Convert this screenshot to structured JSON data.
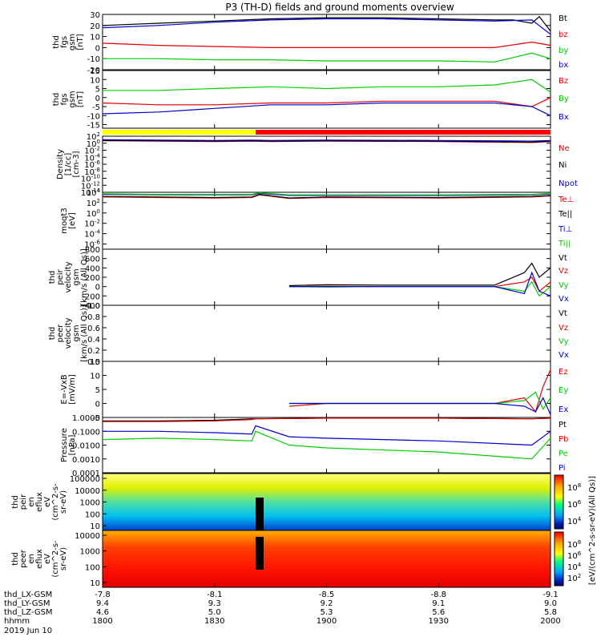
{
  "title": "P3 (TH-D) fields and ground moments overview",
  "colors": {
    "black": "#000000",
    "red": "#e00000",
    "green": "#00cc00",
    "blue": "#0000cc",
    "yellow": "#ffff00",
    "barred": "#ff0000"
  },
  "chart_data": [
    {
      "type": "line",
      "ylabel": [
        "thd",
        "fgs",
        "gsm",
        "[nT]"
      ],
      "ylim": [
        -20,
        30
      ],
      "yticks": [
        "30",
        "20",
        "10",
        "0",
        "-10",
        "-20"
      ],
      "scale": "linear",
      "series": [
        {
          "name": "Bt",
          "color": "#000000",
          "x": [
            1800,
            1815,
            1830,
            1845,
            1900,
            1915,
            1930,
            1945,
            1950,
            1955,
            1957,
            1960
          ],
          "y": [
            20,
            22,
            24,
            26,
            27,
            27,
            26,
            25,
            25,
            22,
            28,
            15
          ]
        },
        {
          "name": "bz",
          "color": "#e00000",
          "x": [
            1800,
            1815,
            1830,
            1845,
            1900,
            1915,
            1930,
            1945,
            1955,
            1960
          ],
          "y": [
            4,
            2,
            1,
            0,
            0,
            0,
            0,
            0,
            5,
            2
          ]
        },
        {
          "name": "by",
          "color": "#00cc00",
          "x": [
            1800,
            1815,
            1830,
            1845,
            1900,
            1915,
            1930,
            1945,
            1955,
            1960
          ],
          "y": [
            -10,
            -10,
            -11,
            -11,
            -12,
            -12,
            -12,
            -13,
            -5,
            -10
          ]
        },
        {
          "name": "bx",
          "color": "#0000cc",
          "x": [
            1800,
            1815,
            1830,
            1845,
            1900,
            1915,
            1930,
            1945,
            1955,
            1960
          ],
          "y": [
            18,
            20,
            23,
            25,
            26,
            26,
            25,
            24,
            25,
            12
          ]
        }
      ]
    },
    {
      "type": "line",
      "ylabel": [
        "thd",
        "fgs",
        "gsm",
        "[nT]"
      ],
      "ylim": [
        -17,
        15
      ],
      "yticks": [
        "15",
        "10",
        "5",
        "0",
        "-5",
        "-10",
        "-15"
      ],
      "scale": "linear",
      "series": [
        {
          "name": "Bz",
          "color": "#e00000",
          "x": [
            1800,
            1815,
            1830,
            1845,
            1900,
            1915,
            1930,
            1945,
            1955,
            1960
          ],
          "y": [
            -3,
            -4,
            -4,
            -3,
            -3,
            -2,
            -2,
            -2,
            -5,
            0
          ]
        },
        {
          "name": "By",
          "color": "#00cc00",
          "x": [
            1800,
            1815,
            1830,
            1845,
            1900,
            1915,
            1930,
            1945,
            1955,
            1960
          ],
          "y": [
            4,
            4,
            5,
            6,
            5,
            6,
            6,
            7,
            10,
            3
          ]
        },
        {
          "name": "Bx",
          "color": "#0000cc",
          "x": [
            1800,
            1815,
            1830,
            1845,
            1900,
            1915,
            1930,
            1945,
            1955,
            1960
          ],
          "y": [
            -9,
            -8,
            -6,
            -4,
            -4,
            -3,
            -3,
            -3,
            -5,
            -10
          ]
        }
      ]
    },
    {
      "type": "line",
      "ylabel": [
        "Density",
        "[1/cc]",
        "[cm-3]"
      ],
      "ylim": [
        -14,
        2
      ],
      "yticks": [
        "10^2",
        "10^0",
        "10^-2",
        "10^-4",
        "10^-6",
        "10^-8",
        "10^-10",
        "10^-12",
        "10^-14"
      ],
      "scale": "log",
      "series": [
        {
          "name": "Ne",
          "color": "#e00000",
          "x": [
            1800,
            1815,
            1830,
            1840,
            1845,
            1900,
            1930,
            1955,
            1960
          ],
          "y": [
            0.7,
            0.6,
            0.5,
            0.6,
            0.5,
            0.6,
            0.5,
            0.2,
            0.5
          ]
        },
        {
          "name": "Ni",
          "color": "#000000",
          "x": [
            1800,
            1815,
            1830,
            1840,
            1845,
            1900,
            1930,
            1955,
            1960
          ],
          "y": [
            0.8,
            0.7,
            0.6,
            0.7,
            0.6,
            0.7,
            0.6,
            0.3,
            0.6
          ]
        },
        {
          "name": "Npot",
          "color": "#0000cc",
          "x": [
            1800,
            1815,
            1830,
            1840,
            1845,
            1900,
            1930,
            1955,
            1960
          ],
          "y": [
            1.0,
            0.9,
            0.8,
            0.9,
            0.8,
            0.9,
            0.8,
            0.6,
            0.8
          ]
        }
      ]
    },
    {
      "type": "line",
      "ylabel": [
        "moqt3",
        "[eV]"
      ],
      "ylim": [
        -7,
        4
      ],
      "yticks": [
        "10^4",
        "10^2",
        "10^0",
        "10^-2",
        "10^-4",
        "10^-6"
      ],
      "scale": "log",
      "series": [
        {
          "name": "Te⊥",
          "color": "#e00000",
          "x": [
            1800,
            1815,
            1830,
            1840,
            1842,
            1850,
            1900,
            1930,
            1955,
            1960
          ],
          "y": [
            3.1,
            3.0,
            2.9,
            3.0,
            3.5,
            2.8,
            3.0,
            2.9,
            3.1,
            3.3
          ]
        },
        {
          "name": "Te||",
          "color": "#000000",
          "x": [
            1800,
            1815,
            1830,
            1840,
            1842,
            1850,
            1900,
            1930,
            1955,
            1960
          ],
          "y": [
            3.2,
            3.1,
            3.0,
            3.1,
            3.6,
            2.9,
            3.1,
            3.0,
            3.2,
            3.4
          ]
        },
        {
          "name": "Ti⊥",
          "color": "#0000cc",
          "x": [
            1800,
            1815,
            1830,
            1840,
            1842,
            1850,
            1900,
            1930,
            1955,
            1960
          ],
          "y": [
            3.6,
            3.5,
            3.5,
            3.5,
            3.8,
            3.4,
            3.4,
            3.4,
            3.5,
            3.7
          ]
        },
        {
          "name": "Ti||",
          "color": "#00cc00",
          "x": [
            1800,
            1815,
            1830,
            1840,
            1842,
            1850,
            1900,
            1930,
            1955,
            1960
          ],
          "y": [
            3.7,
            3.6,
            3.6,
            3.6,
            3.9,
            3.5,
            3.5,
            3.5,
            3.6,
            3.8
          ]
        }
      ]
    },
    {
      "type": "line",
      "ylabel": [
        "thd",
        "peir",
        "velocity",
        "gsm",
        "[km/s (All Qs)]"
      ],
      "ylim": [
        -400,
        800
      ],
      "yticks": [
        "800",
        "600",
        "400",
        "200",
        "0",
        "-200",
        "-400"
      ],
      "scale": "linear",
      "series": [
        {
          "name": "Vt",
          "color": "#000000",
          "x": [
            1850,
            1900,
            1915,
            1930,
            1945,
            1953,
            1955,
            1957,
            1960
          ],
          "y": [
            20,
            40,
            30,
            30,
            30,
            300,
            500,
            200,
            400
          ]
        },
        {
          "name": "Vz",
          "color": "#e00000",
          "x": [
            1850,
            1900,
            1915,
            1930,
            1945,
            1953,
            1955,
            1957,
            1960
          ],
          "y": [
            0,
            10,
            0,
            0,
            0,
            100,
            200,
            -100,
            100
          ]
        },
        {
          "name": "Vy",
          "color": "#00cc00",
          "x": [
            1850,
            1900,
            1915,
            1930,
            1945,
            1953,
            1955,
            1957,
            1960
          ],
          "y": [
            0,
            -10,
            0,
            0,
            0,
            -100,
            100,
            -200,
            0
          ]
        },
        {
          "name": "Vx",
          "color": "#0000cc",
          "x": [
            1850,
            1900,
            1915,
            1930,
            1945,
            1953,
            1955,
            1957,
            1960
          ],
          "y": [
            0,
            0,
            0,
            0,
            0,
            -150,
            300,
            -100,
            -200
          ]
        }
      ]
    },
    {
      "type": "line",
      "ylabel": [
        "thd",
        "peer",
        "velocity",
        "gsm",
        "[km/s (All Qs)]"
      ],
      "ylim": [
        0,
        1
      ],
      "yticks": [
        "1.0",
        "0.8",
        "0.6",
        "0.4",
        "0.2",
        "0.0"
      ],
      "scale": "linear",
      "series": [
        {
          "name": "Vt",
          "color": "#000000",
          "x": [],
          "y": []
        },
        {
          "name": "Vz",
          "color": "#e00000",
          "x": [],
          "y": []
        },
        {
          "name": "Vy",
          "color": "#00cc00",
          "x": [],
          "y": []
        },
        {
          "name": "Vx",
          "color": "#0000cc",
          "x": [],
          "y": []
        }
      ]
    },
    {
      "type": "line",
      "ylabel": [
        "E=-VxB",
        "[mV/m]"
      ],
      "ylim": [
        -5,
        15
      ],
      "yticks": [
        "15",
        "10",
        "5",
        "0",
        "-5"
      ],
      "scale": "linear",
      "series": [
        {
          "name": "Ez",
          "color": "#e00000",
          "x": [
            1850,
            1900,
            1915,
            1930,
            1945,
            1953,
            1956,
            1958,
            1960
          ],
          "y": [
            -1,
            0,
            0,
            0,
            0,
            2,
            -3,
            6,
            12
          ]
        },
        {
          "name": "Ey",
          "color": "#00cc00",
          "x": [
            1850,
            1900,
            1915,
            1930,
            1945,
            1953,
            1956,
            1958,
            1960
          ],
          "y": [
            0,
            0,
            0,
            0,
            0,
            1,
            4,
            -2,
            2
          ]
        },
        {
          "name": "Ex",
          "color": "#0000cc",
          "x": [
            1850,
            1900,
            1915,
            1930,
            1945,
            1953,
            1956,
            1958,
            1960
          ],
          "y": [
            0,
            0,
            0,
            0,
            0,
            -1,
            -3,
            2,
            -4
          ]
        }
      ]
    },
    {
      "type": "line",
      "ylabel": [
        "Pressure",
        "[nPa]"
      ],
      "ylim": [
        -4,
        0
      ],
      "yticks": [
        "1.0000",
        "0.1000",
        "0.0100",
        "0.0010",
        "0.0001"
      ],
      "scale": "log",
      "series": [
        {
          "name": "Pt",
          "color": "#000000",
          "x": [
            1800,
            1815,
            1830,
            1840,
            1841,
            1900,
            1930,
            1955,
            1960
          ],
          "y": [
            -0.25,
            -0.25,
            -0.2,
            -0.1,
            -0.1,
            -0.05,
            -0.05,
            -0.1,
            -0.05
          ]
        },
        {
          "name": "Pb",
          "color": "#e00000",
          "x": [
            1800,
            1815,
            1830,
            1840,
            1841,
            1900,
            1930,
            1955,
            1960
          ],
          "y": [
            -0.3,
            -0.3,
            -0.25,
            -0.15,
            -0.1,
            -0.05,
            -0.05,
            -0.1,
            -0.05
          ]
        },
        {
          "name": "Pe",
          "color": "#00cc00",
          "x": [
            1800,
            1815,
            1830,
            1840,
            1841,
            1850,
            1900,
            1930,
            1955,
            1960
          ],
          "y": [
            -1.6,
            -1.5,
            -1.6,
            -1.7,
            -1.0,
            -2.0,
            -2.2,
            -2.5,
            -3.0,
            -1.5
          ]
        },
        {
          "name": "Pi",
          "color": "#0000cc",
          "x": [
            1800,
            1815,
            1830,
            1840,
            1841,
            1850,
            1900,
            1930,
            1955,
            1960
          ],
          "y": [
            -1.0,
            -1.0,
            -1.1,
            -1.2,
            -0.6,
            -1.4,
            -1.5,
            -1.7,
            -2.0,
            -1.0
          ]
        }
      ]
    },
    {
      "type": "heatmap",
      "ylabel": [
        "thd",
        "peir",
        "en",
        "eflux",
        "eV",
        "(cm^2-s-",
        "sr-eV)"
      ],
      "yticks": [
        "100000",
        "10000",
        "1000",
        "100",
        "10"
      ],
      "scale": "log"
    },
    {
      "type": "heatmap",
      "ylabel": [
        "thd",
        "peer",
        "en",
        "eflux",
        "eV",
        "(cm^2-s-",
        "sr-eV)"
      ],
      "yticks": [
        "10000",
        "1000",
        "100",
        "10"
      ],
      "scale": "log"
    }
  ],
  "colorbar": {
    "label": "[eV/(cm^2-s-sr-eV)(All Qs)]",
    "ticks_top": [
      "10^8",
      "10^6",
      "10^4"
    ],
    "ticks_bottom": [
      "10^8",
      "10^6",
      "10^4",
      "10^2"
    ]
  },
  "xaxis": {
    "rows": [
      {
        "label": "thd_LX-GSM",
        "values": [
          "-7.8",
          "-8.1",
          "-8.5",
          "-8.8",
          "-9.1"
        ]
      },
      {
        "label": "thd_LY-GSM",
        "values": [
          "9.4",
          "9.3",
          "9.2",
          "9.1",
          "9.0"
        ]
      },
      {
        "label": "thd_LZ-GSM",
        "values": [
          "4.6",
          "5.0",
          "5.3",
          "5.6",
          "5.8"
        ]
      },
      {
        "label": "hhmm",
        "values": [
          "1800",
          "1830",
          "1900",
          "1930",
          "2000"
        ]
      }
    ],
    "date": "2019 Jun 10"
  }
}
